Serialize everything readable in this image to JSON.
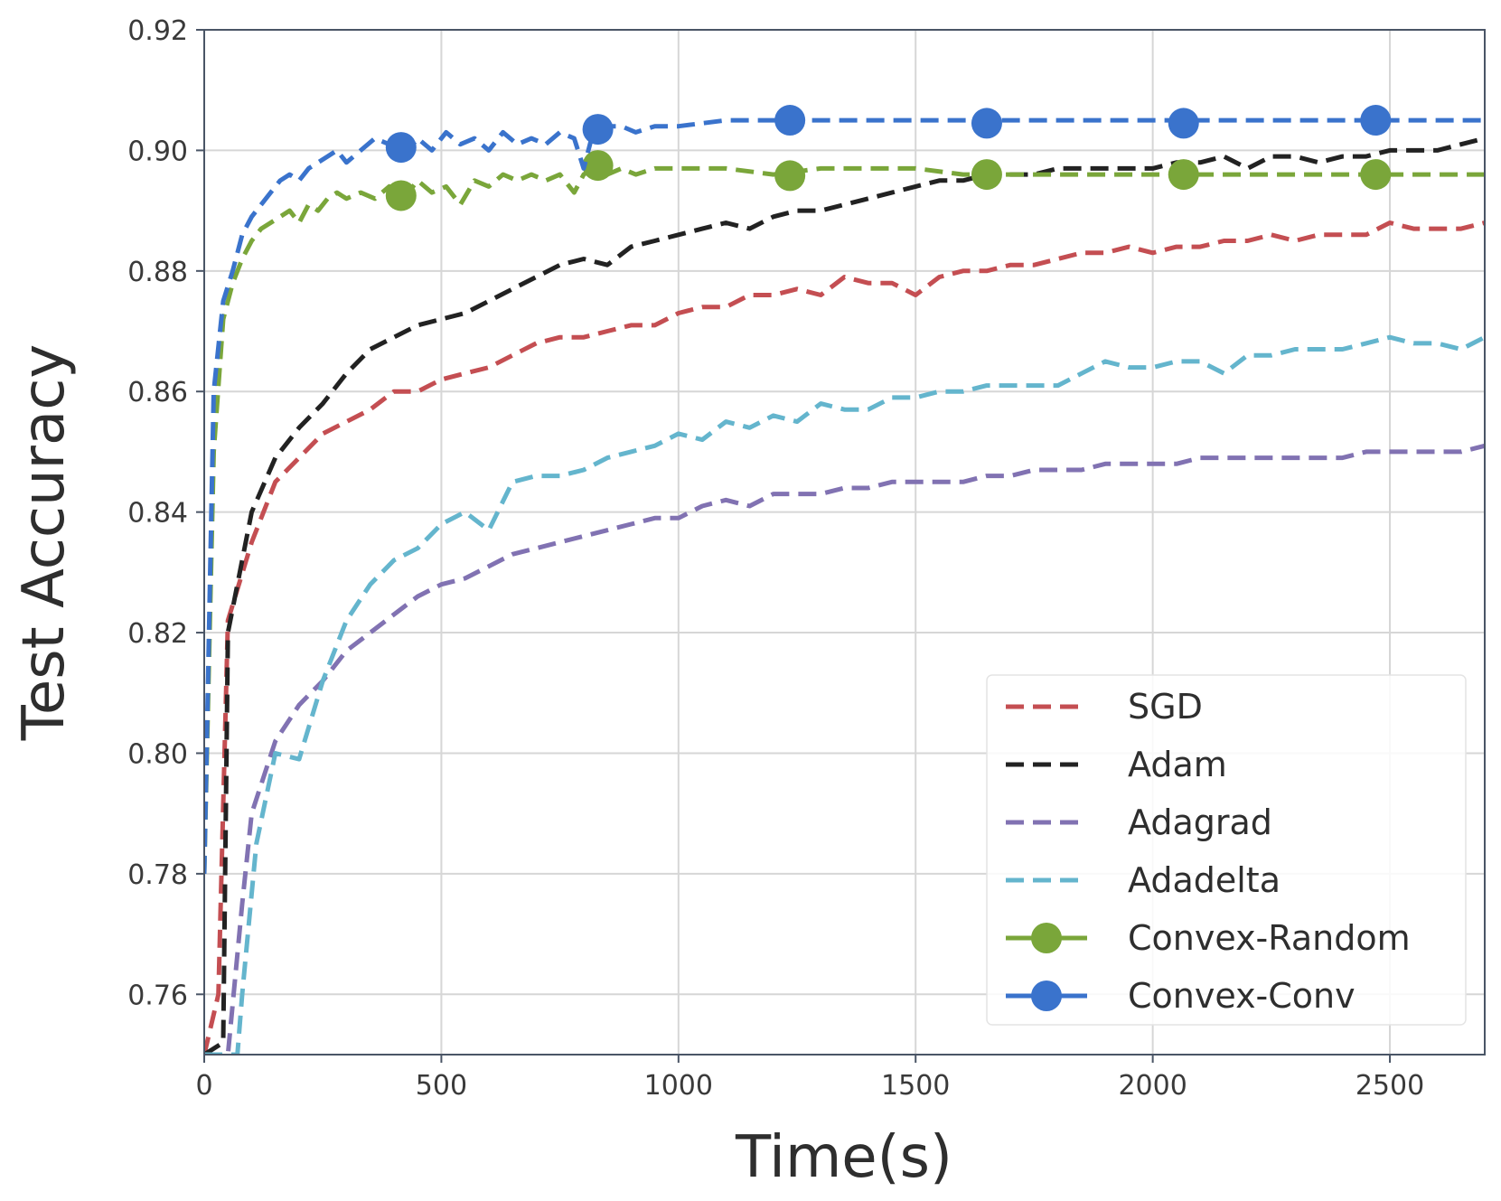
{
  "chart_data": {
    "type": "line",
    "title": "",
    "xlabel": "Time(s)",
    "ylabel": "Test Accuracy",
    "xlim": [
      0,
      2700
    ],
    "ylim": [
      0.75,
      0.92
    ],
    "xticks": [
      0,
      500,
      1000,
      1500,
      2000,
      2500
    ],
    "xtick_labels": [
      "0",
      "500",
      "1000",
      "1500",
      "2000",
      "2500"
    ],
    "yticks": [
      0.76,
      0.78,
      0.8,
      0.82,
      0.84,
      0.86,
      0.88,
      0.9,
      0.92
    ],
    "ytick_labels": [
      "0.76",
      "0.78",
      "0.80",
      "0.82",
      "0.84",
      "0.86",
      "0.88",
      "0.90",
      "0.92"
    ],
    "grid": true,
    "legend_position": "lower-right",
    "series": [
      {
        "name": "SGD",
        "color": "#c44e52",
        "style": "dashed",
        "marker": "none",
        "x": [
          0,
          30,
          50,
          100,
          150,
          200,
          250,
          300,
          350,
          400,
          450,
          500,
          550,
          600,
          650,
          700,
          750,
          800,
          850,
          900,
          950,
          1000,
          1050,
          1100,
          1150,
          1200,
          1250,
          1300,
          1350,
          1400,
          1450,
          1500,
          1550,
          1600,
          1650,
          1700,
          1750,
          1800,
          1850,
          1900,
          1950,
          2000,
          2050,
          2100,
          2150,
          2200,
          2250,
          2300,
          2350,
          2400,
          2450,
          2500,
          2550,
          2600,
          2650,
          2700
        ],
        "y": [
          0.75,
          0.76,
          0.822,
          0.835,
          0.845,
          0.849,
          0.853,
          0.855,
          0.857,
          0.86,
          0.86,
          0.862,
          0.863,
          0.864,
          0.866,
          0.868,
          0.869,
          0.869,
          0.87,
          0.871,
          0.871,
          0.873,
          0.874,
          0.874,
          0.876,
          0.876,
          0.877,
          0.876,
          0.879,
          0.878,
          0.878,
          0.876,
          0.879,
          0.88,
          0.88,
          0.881,
          0.881,
          0.882,
          0.883,
          0.883,
          0.884,
          0.883,
          0.884,
          0.884,
          0.885,
          0.885,
          0.886,
          0.885,
          0.886,
          0.886,
          0.886,
          0.888,
          0.887,
          0.887,
          0.887,
          0.888
        ]
      },
      {
        "name": "Adam",
        "color": "#222222",
        "style": "dashed",
        "marker": "none",
        "x": [
          0,
          40,
          50,
          100,
          150,
          200,
          250,
          300,
          350,
          400,
          450,
          500,
          550,
          600,
          650,
          700,
          750,
          800,
          850,
          900,
          950,
          1000,
          1050,
          1100,
          1150,
          1200,
          1250,
          1300,
          1350,
          1400,
          1450,
          1500,
          1550,
          1600,
          1650,
          1700,
          1750,
          1800,
          1850,
          1900,
          1950,
          2000,
          2050,
          2100,
          2150,
          2200,
          2250,
          2300,
          2350,
          2400,
          2450,
          2500,
          2550,
          2600,
          2650,
          2700
        ],
        "y": [
          0.75,
          0.752,
          0.82,
          0.84,
          0.849,
          0.854,
          0.858,
          0.863,
          0.867,
          0.869,
          0.871,
          0.872,
          0.873,
          0.875,
          0.877,
          0.879,
          0.881,
          0.882,
          0.881,
          0.884,
          0.885,
          0.886,
          0.887,
          0.888,
          0.887,
          0.889,
          0.89,
          0.89,
          0.891,
          0.892,
          0.893,
          0.894,
          0.895,
          0.895,
          0.896,
          0.896,
          0.896,
          0.897,
          0.897,
          0.897,
          0.897,
          0.897,
          0.898,
          0.898,
          0.899,
          0.897,
          0.899,
          0.899,
          0.898,
          0.899,
          0.899,
          0.9,
          0.9,
          0.9,
          0.901,
          0.902
        ]
      },
      {
        "name": "Adagrad",
        "color": "#8172b2",
        "style": "dashed",
        "marker": "none",
        "x": [
          0,
          50,
          80,
          100,
          150,
          200,
          250,
          300,
          350,
          400,
          450,
          500,
          550,
          600,
          650,
          700,
          750,
          800,
          850,
          900,
          950,
          1000,
          1050,
          1100,
          1150,
          1200,
          1250,
          1300,
          1350,
          1400,
          1450,
          1500,
          1550,
          1600,
          1650,
          1700,
          1750,
          1800,
          1850,
          1900,
          1950,
          2000,
          2050,
          2100,
          2150,
          2200,
          2250,
          2300,
          2350,
          2400,
          2450,
          2500,
          2550,
          2600,
          2650,
          2700
        ],
        "y": [
          0.75,
          0.75,
          0.775,
          0.79,
          0.802,
          0.808,
          0.812,
          0.817,
          0.82,
          0.823,
          0.826,
          0.828,
          0.829,
          0.831,
          0.833,
          0.834,
          0.835,
          0.836,
          0.837,
          0.838,
          0.839,
          0.839,
          0.841,
          0.842,
          0.841,
          0.843,
          0.843,
          0.843,
          0.844,
          0.844,
          0.845,
          0.845,
          0.845,
          0.845,
          0.846,
          0.846,
          0.847,
          0.847,
          0.847,
          0.848,
          0.848,
          0.848,
          0.848,
          0.849,
          0.849,
          0.849,
          0.849,
          0.849,
          0.849,
          0.849,
          0.85,
          0.85,
          0.85,
          0.85,
          0.85,
          0.851
        ]
      },
      {
        "name": "Adadelta",
        "color": "#64b5cd",
        "style": "dashed",
        "marker": "none",
        "x": [
          0,
          70,
          80,
          110,
          150,
          200,
          250,
          300,
          350,
          400,
          450,
          500,
          550,
          600,
          650,
          700,
          750,
          800,
          850,
          900,
          950,
          1000,
          1050,
          1100,
          1150,
          1200,
          1250,
          1300,
          1350,
          1400,
          1450,
          1500,
          1550,
          1600,
          1650,
          1700,
          1750,
          1800,
          1850,
          1900,
          1950,
          2000,
          2050,
          2100,
          2150,
          2200,
          2250,
          2300,
          2350,
          2400,
          2450,
          2500,
          2550,
          2600,
          2650,
          2700
        ],
        "y": [
          0.75,
          0.75,
          0.76,
          0.785,
          0.8,
          0.799,
          0.812,
          0.822,
          0.828,
          0.832,
          0.834,
          0.838,
          0.84,
          0.837,
          0.845,
          0.846,
          0.846,
          0.847,
          0.849,
          0.85,
          0.851,
          0.853,
          0.852,
          0.855,
          0.854,
          0.856,
          0.855,
          0.858,
          0.857,
          0.857,
          0.859,
          0.859,
          0.86,
          0.86,
          0.861,
          0.861,
          0.861,
          0.861,
          0.863,
          0.865,
          0.864,
          0.864,
          0.865,
          0.865,
          0.863,
          0.866,
          0.866,
          0.867,
          0.867,
          0.867,
          0.868,
          0.869,
          0.868,
          0.868,
          0.867,
          0.869
        ]
      },
      {
        "name": "Convex-Random",
        "color": "#7aa63a",
        "style": "dashed",
        "marker": "circle",
        "x": [
          0,
          20,
          40,
          60,
          80,
          100,
          120,
          140,
          160,
          180,
          200,
          220,
          240,
          260,
          280,
          300,
          330,
          360,
          390,
          420,
          450,
          480,
          510,
          540,
          570,
          600,
          630,
          660,
          690,
          720,
          750,
          780,
          800,
          820,
          850,
          880,
          910,
          950,
          1000,
          1100,
          1200,
          1300,
          1400,
          1500,
          1600,
          1700,
          1800,
          1900,
          2000,
          2100,
          2200,
          2300,
          2400,
          2500,
          2600,
          2700
        ],
        "y": [
          0.78,
          0.85,
          0.872,
          0.878,
          0.882,
          0.885,
          0.887,
          0.888,
          0.889,
          0.89,
          0.888,
          0.891,
          0.89,
          0.892,
          0.893,
          0.892,
          0.893,
          0.892,
          0.894,
          0.892,
          0.895,
          0.893,
          0.894,
          0.891,
          0.895,
          0.894,
          0.896,
          0.895,
          0.896,
          0.895,
          0.896,
          0.893,
          0.896,
          0.897,
          0.896,
          0.897,
          0.896,
          0.897,
          0.897,
          0.897,
          0.896,
          0.897,
          0.897,
          0.897,
          0.896,
          0.896,
          0.896,
          0.896,
          0.896,
          0.896,
          0.896,
          0.896,
          0.896,
          0.896,
          0.896,
          0.896
        ],
        "markers_x": [
          415,
          830,
          1235,
          1650,
          2065,
          2470
        ],
        "markers_y": [
          0.8925,
          0.8975,
          0.8958,
          0.896,
          0.896,
          0.896
        ]
      },
      {
        "name": "Convex-Conv",
        "color": "#3a73cc",
        "style": "dashed",
        "marker": "circle",
        "x": [
          0,
          20,
          40,
          60,
          80,
          100,
          120,
          140,
          160,
          180,
          200,
          220,
          240,
          260,
          280,
          300,
          330,
          360,
          390,
          420,
          450,
          480,
          510,
          540,
          570,
          600,
          630,
          660,
          690,
          720,
          750,
          780,
          800,
          820,
          850,
          880,
          910,
          950,
          1000,
          1100,
          1200,
          1300,
          1400,
          1500,
          1600,
          1700,
          1800,
          1900,
          2000,
          2100,
          2200,
          2300,
          2400,
          2500,
          2600,
          2700
        ],
        "y": [
          0.78,
          0.86,
          0.875,
          0.88,
          0.886,
          0.889,
          0.891,
          0.893,
          0.895,
          0.896,
          0.895,
          0.897,
          0.898,
          0.899,
          0.9,
          0.898,
          0.9,
          0.902,
          0.901,
          0.899,
          0.902,
          0.9,
          0.903,
          0.901,
          0.902,
          0.9,
          0.903,
          0.901,
          0.902,
          0.901,
          0.903,
          0.902,
          0.897,
          0.903,
          0.904,
          0.904,
          0.903,
          0.904,
          0.904,
          0.905,
          0.905,
          0.905,
          0.905,
          0.905,
          0.905,
          0.905,
          0.905,
          0.905,
          0.905,
          0.905,
          0.905,
          0.905,
          0.905,
          0.905,
          0.905,
          0.905
        ],
        "markers_x": [
          415,
          830,
          1235,
          1650,
          2065,
          2470
        ],
        "markers_y": [
          0.9005,
          0.9035,
          0.905,
          0.9045,
          0.9045,
          0.905
        ]
      }
    ]
  }
}
